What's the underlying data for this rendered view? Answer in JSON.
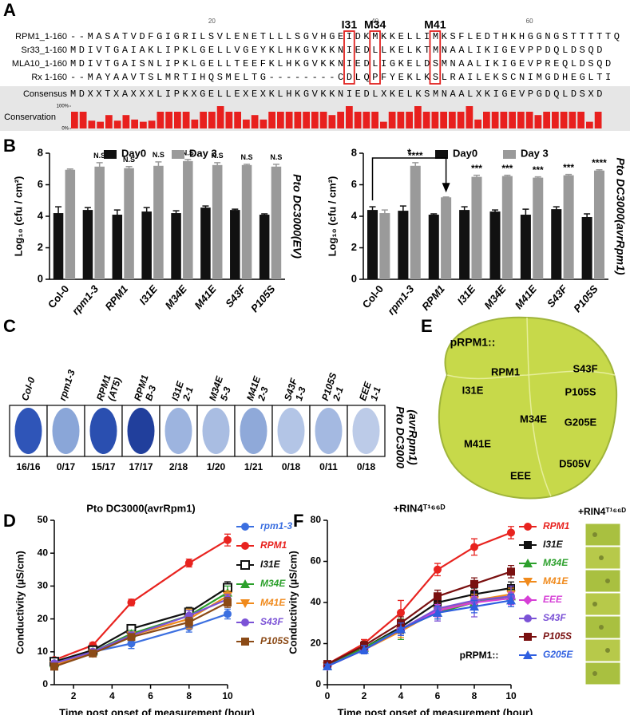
{
  "panel_labels": [
    "A",
    "B",
    "C",
    "D",
    "E",
    "F"
  ],
  "alignment": {
    "ruler": [
      "20",
      "40",
      "60"
    ],
    "markers": [
      "I31",
      "M34",
      "M41"
    ],
    "rows": [
      {
        "name": "RPM1_1-160",
        "sequence": "--MASATVDFGIGRILSVLENETLLLSGVHGEIDKMKKELLIMKSFLEDTHKHGGNGSTTTTTQ"
      },
      {
        "name": "Sr33_1-160",
        "sequence": "MDIVTGAIAKLIPKLGELLVGEYKLHKGVKKNIEDLLKELKTMNAALIKIGEVPPDQLDSQD"
      },
      {
        "name": "MLA10_1-160",
        "sequence": "MDIVTGAISNLIPKLGELLTEEFKLHKGVKKNIEDLIGKELDSMNAALIKIGEVPREQLDSQD"
      },
      {
        "name": "Rx 1-160",
        "sequence": "--MAYAAVTSLMRTIHQSMELTG--------CDLQPFYEKLKSLRAILEKSCNIMGDHEGLTI"
      },
      {
        "name": "Consensus",
        "sequence": "MDXXTXAXXXLIPKXGELLEXEXKLHKGVKKNIEDLXKELKSMNAALXKIGEVPGDQLDSXD"
      }
    ]
  },
  "chart_data": [
    {
      "type": "bar",
      "ylabel": "Conservation",
      "color": "#e8201e",
      "values": [
        75,
        75,
        35,
        30,
        60,
        35,
        60,
        40,
        30,
        35,
        75,
        75,
        75,
        75,
        40,
        75,
        75,
        100,
        75,
        75,
        40,
        60,
        40,
        75,
        75,
        75,
        75,
        75,
        75,
        75,
        60,
        75,
        100,
        75,
        75,
        75,
        30,
        75,
        75,
        75,
        100,
        75,
        75,
        75,
        75,
        75,
        100,
        40,
        75,
        75,
        75,
        75,
        75,
        75,
        60,
        75,
        75,
        75,
        75,
        75,
        30,
        75
      ],
      "ylim": [
        0,
        100
      ],
      "yticks": [
        {
          "value": 0,
          "label": "0%"
        },
        {
          "value": 100,
          "label": "100%"
        }
      ]
    },
    {
      "type": "bar",
      "ylabel": "Log₁₀ (cfu / cm²)",
      "side_label": "Pto DC3000(EV)",
      "categories": [
        "Col-0",
        "rpm1-3",
        "RPM1",
        "I31E",
        "M34E",
        "M41E",
        "S43F",
        "P105S"
      ],
      "series": [
        {
          "name": "Day0",
          "color": "#111111",
          "values": [
            4.2,
            4.4,
            4.1,
            4.3,
            4.2,
            4.55,
            4.4,
            4.1
          ],
          "errors": [
            0.4,
            0.15,
            0.3,
            0.25,
            0.15,
            0.1,
            0.05,
            0.05
          ]
        },
        {
          "name": "Day 3",
          "color": "#9a9a9a",
          "values": [
            6.95,
            7.15,
            7.05,
            7.2,
            7.5,
            7.25,
            7.25,
            7.15
          ],
          "errors": [
            0.05,
            0.25,
            0.1,
            0.25,
            0.1,
            0.15,
            0.05,
            0.15
          ]
        }
      ],
      "annotations": [
        null,
        "N.S",
        "N.S",
        "N.S",
        "N.S",
        "N.S",
        "N.S",
        "N.S"
      ],
      "ylim": [
        0,
        8
      ],
      "yticks": [
        0,
        2,
        4,
        6,
        8
      ]
    },
    {
      "type": "bar",
      "ylabel": "Log₁₀ (cfu / cm²)",
      "side_label": "Pto DC3000(avrRpm1)",
      "categories": [
        "Col-0",
        "rpm1-3",
        "RPM1",
        "I31E",
        "M34E",
        "M41E",
        "S43F",
        "P105S"
      ],
      "series": [
        {
          "name": "Day0",
          "color": "#111111",
          "values": [
            4.4,
            4.35,
            4.1,
            4.4,
            4.3,
            4.1,
            4.45,
            3.95
          ],
          "errors": [
            0.2,
            0.3,
            0.05,
            0.2,
            0.1,
            0.35,
            0.15,
            0.2
          ]
        },
        {
          "name": "Day 3",
          "color": "#9a9a9a",
          "values": [
            4.2,
            7.2,
            5.2,
            6.5,
            6.55,
            6.45,
            6.6,
            6.9
          ],
          "errors": [
            0.2,
            0.2,
            0.02,
            0.1,
            0.05,
            0.05,
            0.05,
            0.05
          ]
        }
      ],
      "annotations": [
        null,
        "****",
        null,
        "***",
        "***",
        "***",
        "***",
        "****"
      ],
      "bracket_label": "*",
      "ylim": [
        0,
        8
      ],
      "yticks": [
        0,
        2,
        4,
        6,
        8
      ]
    },
    {
      "type": "line",
      "title": "Pto DC3000(avrRpm1)",
      "xlabel": "Time post onset of measurement (hour)",
      "ylabel": "Conductivity (µS/cm)",
      "x": [
        1,
        3,
        5,
        8,
        10
      ],
      "series": [
        {
          "name": "rpm1-3",
          "color": "#3b6fe0",
          "marker": "circle",
          "values": [
            7,
            10,
            12.5,
            17.5,
            21.5
          ],
          "errors": [
            0.5,
            0.8,
            1.5,
            1.5,
            1.5
          ]
        },
        {
          "name": "RPM1",
          "color": "#e8231f",
          "marker": "circle",
          "values": [
            7.5,
            12,
            25,
            37,
            44
          ],
          "errors": [
            0.5,
            0.8,
            1,
            1.2,
            1.8
          ]
        },
        {
          "name": "I31E",
          "color": "#111111",
          "marker": "open-square",
          "values": [
            7,
            10.5,
            17,
            22,
            29.5
          ],
          "errors": [
            0.5,
            0.8,
            1,
            1.5,
            1.8
          ]
        },
        {
          "name": "M34E",
          "color": "#2ca02c",
          "marker": "triangle",
          "values": [
            6.5,
            10,
            15.5,
            21,
            28
          ],
          "errors": [
            0.5,
            0.8,
            1,
            2,
            2
          ]
        },
        {
          "name": "M41E",
          "color": "#f08a1c",
          "marker": "triangle-down",
          "values": [
            6,
            9.5,
            15,
            20,
            27
          ],
          "errors": [
            0.5,
            0.8,
            1,
            3,
            1.5
          ]
        },
        {
          "name": "S43F",
          "color": "#7b52d6",
          "marker": "circle",
          "values": [
            6.5,
            10,
            15,
            21,
            26
          ],
          "errors": [
            0.5,
            0.8,
            1,
            1.5,
            1.5
          ]
        },
        {
          "name": "P105S",
          "color": "#8b4a16",
          "marker": "square",
          "values": [
            5.5,
            9.5,
            14.5,
            19,
            25
          ],
          "errors": [
            0.5,
            0.8,
            1,
            1.5,
            1.5
          ]
        }
      ],
      "xlim": [
        1,
        10
      ],
      "xticks": [
        2,
        4,
        6,
        8,
        10
      ],
      "ylim": [
        0,
        50
      ],
      "yticks": [
        0,
        10,
        20,
        30,
        40,
        50
      ]
    },
    {
      "type": "line",
      "title": "+RIN4ᵀ¹⁶⁶ᴰ",
      "inset_label": "+RIN4ᵀ¹⁶⁶ᴰ",
      "annotation": "pRPM1::",
      "xlabel": "Time post onset of measurement (hour)",
      "ylabel": "Conductivity (µS/cm)",
      "x": [
        0,
        2,
        4,
        6,
        8,
        10
      ],
      "series": [
        {
          "name": "RPM1",
          "color": "#e8231f",
          "marker": "circle",
          "values": [
            10,
            20,
            35,
            56,
            67,
            74
          ],
          "errors": [
            1,
            2,
            6,
            3,
            4,
            3
          ]
        },
        {
          "name": "I31E",
          "color": "#111111",
          "marker": "square",
          "values": [
            10,
            18,
            28,
            40,
            44,
            47
          ],
          "errors": [
            1,
            2,
            3,
            3,
            3,
            3
          ]
        },
        {
          "name": "M34E",
          "color": "#2ca02c",
          "marker": "triangle",
          "values": [
            9,
            18,
            27,
            35,
            40,
            43
          ],
          "errors": [
            1,
            3,
            5,
            3,
            3,
            3
          ]
        },
        {
          "name": "M41E",
          "color": "#f08a1c",
          "marker": "triangle-down",
          "values": [
            9,
            17,
            26,
            36,
            41,
            44
          ],
          "errors": [
            1,
            2,
            3,
            3,
            3,
            3
          ]
        },
        {
          "name": "EEE",
          "color": "#d63fd6",
          "marker": "diamond",
          "values": [
            9,
            17,
            27,
            36,
            40,
            42
          ],
          "errors": [
            1,
            2,
            3,
            3,
            3,
            3
          ]
        },
        {
          "name": "S43F",
          "color": "#7b52d6",
          "marker": "circle",
          "values": [
            9,
            17,
            27,
            37,
            41,
            43
          ],
          "errors": [
            1,
            2,
            3,
            6,
            8,
            5
          ]
        },
        {
          "name": "P105S",
          "color": "#7a1010",
          "marker": "square",
          "values": [
            10,
            19,
            30,
            43,
            49,
            55
          ],
          "errors": [
            1,
            2,
            3,
            3,
            3,
            3
          ]
        },
        {
          "name": "G205E",
          "color": "#2f5fe0",
          "marker": "triangle",
          "values": [
            9,
            17,
            27,
            35,
            38,
            41
          ],
          "errors": [
            1,
            2,
            3,
            3,
            3,
            3
          ]
        }
      ],
      "xlim": [
        0,
        10
      ],
      "xticks": [
        0,
        2,
        4,
        6,
        8,
        10
      ],
      "ylim": [
        0,
        80
      ],
      "yticks": [
        0,
        20,
        40,
        60,
        80
      ]
    }
  ],
  "leaf_assay": {
    "side_label": [
      "Pto DC3000",
      "(avrRpm1)"
    ],
    "columns": [
      {
        "label": [
          "Col-0"
        ],
        "ratio": "16/16"
      },
      {
        "label": [
          "rpm1-3"
        ],
        "ratio": "0/17"
      },
      {
        "label": [
          "RPM1",
          "(AT5)"
        ],
        "ratio": "15/17"
      },
      {
        "label": [
          "RPM1",
          "B-3"
        ],
        "ratio": "17/17"
      },
      {
        "label": [
          "I31E",
          "2-1"
        ],
        "ratio": "2/18"
      },
      {
        "label": [
          "M34E",
          "5-3"
        ],
        "ratio": "1/20"
      },
      {
        "label": [
          "M41E",
          "2-3"
        ],
        "ratio": "1/21"
      },
      {
        "label": [
          "S43F",
          "1-3"
        ],
        "ratio": "0/18"
      },
      {
        "label": [
          "P105S",
          "2-1"
        ],
        "ratio": "0/11"
      },
      {
        "label": [
          "EEE",
          "1-1"
        ],
        "ratio": "0/18"
      }
    ]
  },
  "leaf_image": {
    "title": "pRPM1::",
    "labels": [
      "RPM1",
      "S43F",
      "I31E",
      "P105S",
      "M34E",
      "G205E",
      "M41E",
      "D505V",
      "EEE"
    ]
  }
}
